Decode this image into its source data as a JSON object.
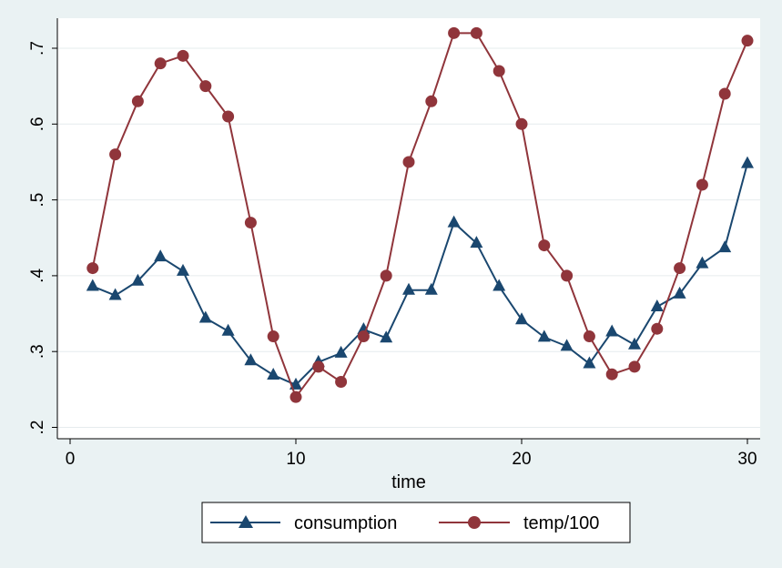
{
  "chart_data": {
    "type": "line",
    "xlabel": "time",
    "ylabel": "",
    "xlim": [
      0,
      30
    ],
    "ylim": [
      0.2,
      0.72
    ],
    "xticks": [
      0,
      10,
      20,
      30
    ],
    "xtick_labels": [
      "0",
      "10",
      "20",
      "30"
    ],
    "yticks": [
      0.2,
      0.3,
      0.4,
      0.5,
      0.6,
      0.7
    ],
    "ytick_labels": [
      ".2",
      ".3",
      ".4",
      ".5",
      ".6",
      ".7"
    ],
    "grid": true,
    "legend_position": "bottom",
    "x": [
      1,
      2,
      3,
      4,
      5,
      6,
      7,
      8,
      9,
      10,
      11,
      12,
      13,
      14,
      15,
      16,
      17,
      18,
      19,
      20,
      21,
      22,
      23,
      24,
      25,
      26,
      27,
      28,
      29,
      30
    ],
    "series": [
      {
        "name": "consumption",
        "color": "#1a476f",
        "marker": "triangle",
        "values": [
          0.386,
          0.374,
          0.393,
          0.425,
          0.406,
          0.344,
          0.327,
          0.288,
          0.269,
          0.256,
          0.286,
          0.298,
          0.329,
          0.318,
          0.381,
          0.381,
          0.47,
          0.443,
          0.386,
          0.342,
          0.319,
          0.307,
          0.284,
          0.326,
          0.309,
          0.359,
          0.376,
          0.416,
          0.437,
          0.548
        ]
      },
      {
        "name": "temp/100",
        "color": "#90353b",
        "marker": "circle",
        "values": [
          0.41,
          0.56,
          0.63,
          0.68,
          0.69,
          0.65,
          0.61,
          0.47,
          0.32,
          0.24,
          0.28,
          0.26,
          0.32,
          0.4,
          0.55,
          0.63,
          0.72,
          0.72,
          0.67,
          0.6,
          0.44,
          0.4,
          0.32,
          0.27,
          0.28,
          0.33,
          0.41,
          0.52,
          0.64,
          0.71
        ]
      }
    ]
  }
}
